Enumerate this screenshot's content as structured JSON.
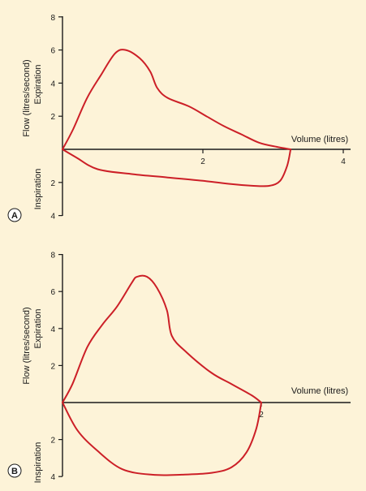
{
  "colors": {
    "background": "#fdf3d8",
    "axis": "#1a1a1a",
    "curve": "#cc1f27"
  },
  "chart_data": [
    {
      "type": "line",
      "panel_label": "A",
      "ylabel": "Flow (litres/second)",
      "ylabel_upper": "Expiration",
      "ylabel_lower": "Inspiration",
      "xlabel": "Volume (litres)",
      "x_ticks": [
        2,
        4
      ],
      "y_ticks_expiration": [
        2,
        4,
        6,
        8
      ],
      "y_ticks_inspiration": [
        2,
        4
      ],
      "xlim": [
        0,
        4
      ],
      "ylim_expiration": [
        0,
        8
      ],
      "ylim_inspiration": [
        0,
        4
      ],
      "series": [
        {
          "part": "expiration",
          "x": [
            0,
            0.15,
            0.35,
            0.55,
            0.75,
            0.9,
            1.1,
            1.25,
            1.35,
            1.5,
            1.8,
            2.05,
            2.3,
            2.55,
            2.8,
            3.05,
            3.25
          ],
          "y": [
            0,
            1.2,
            3.1,
            4.5,
            5.8,
            6.0,
            5.5,
            4.7,
            3.7,
            3.1,
            2.6,
            2.0,
            1.4,
            0.9,
            0.4,
            0.15,
            0
          ]
        },
        {
          "part": "inspiration",
          "x": [
            0,
            0.2,
            0.5,
            1.0,
            1.5,
            2.0,
            2.4,
            2.7,
            2.95,
            3.1,
            3.2,
            3.25
          ],
          "y": [
            0,
            0.5,
            1.2,
            1.5,
            1.7,
            1.9,
            2.1,
            2.2,
            2.2,
            1.9,
            1.0,
            0
          ]
        }
      ]
    },
    {
      "type": "line",
      "panel_label": "B",
      "ylabel": "Flow (litres/second)",
      "ylabel_upper": "Expiration",
      "ylabel_lower": "Inspiration",
      "xlabel": "Volume (litres)",
      "x_ticks": [
        2
      ],
      "y_ticks_expiration": [
        2,
        4,
        6,
        8
      ],
      "y_ticks_inspiration": [
        2,
        4
      ],
      "xlim": [
        0,
        2.6
      ],
      "ylim_expiration": [
        0,
        8
      ],
      "ylim_inspiration": [
        0,
        4
      ],
      "series": [
        {
          "part": "expiration",
          "x": [
            0,
            0.1,
            0.25,
            0.4,
            0.55,
            0.7,
            0.75,
            0.85,
            0.95,
            1.05,
            1.1,
            1.25,
            1.5,
            1.7,
            1.9,
            2.0
          ],
          "y": [
            0,
            1.0,
            3.0,
            4.2,
            5.2,
            6.5,
            6.8,
            6.8,
            6.2,
            5.0,
            3.6,
            2.7,
            1.6,
            1.0,
            0.4,
            0
          ]
        },
        {
          "part": "inspiration",
          "x": [
            0,
            0.15,
            0.35,
            0.6,
            0.9,
            1.2,
            1.5,
            1.7,
            1.85,
            1.95,
            2.0
          ],
          "y": [
            0,
            1.5,
            2.6,
            3.6,
            3.9,
            3.9,
            3.8,
            3.5,
            2.7,
            1.4,
            0
          ]
        }
      ]
    }
  ]
}
